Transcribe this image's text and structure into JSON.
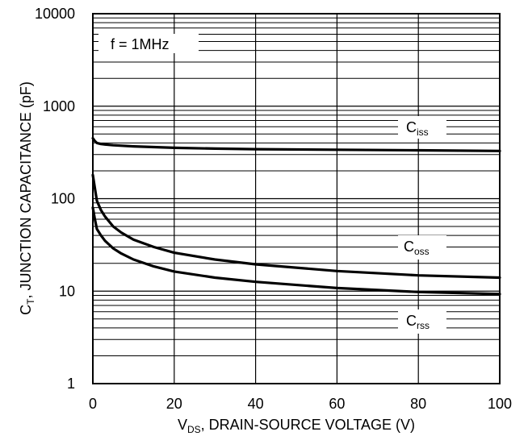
{
  "chart_data": {
    "type": "line",
    "title": "",
    "annotation": "f = 1MHz",
    "x_title": {
      "main": "V",
      "sub": "DS",
      "rest": ", DRAIN-SOURCE VOLTAGE (V)"
    },
    "y_title": {
      "main": "C",
      "sub": "T",
      "rest": ", JUNCTION CAPACITANCE (pF)"
    },
    "xlim": [
      0,
      100
    ],
    "ylim": [
      1,
      10000
    ],
    "y_scale": "log",
    "grid": true,
    "x_ticks": [
      "0",
      "20",
      "40",
      "60",
      "80",
      "100"
    ],
    "y_ticks": [
      "1",
      "10",
      "100",
      "1000",
      "10000"
    ],
    "series": [
      {
        "name": "Ciss",
        "label_main": "C",
        "label_sub": "iss",
        "x": [
          0,
          0.5,
          1,
          2,
          3,
          5,
          10,
          20,
          30,
          40,
          60,
          80,
          100
        ],
        "y": [
          450,
          420,
          400,
          390,
          385,
          378,
          368,
          355,
          348,
          343,
          338,
          333,
          328
        ]
      },
      {
        "name": "Coss",
        "label_main": "C",
        "label_sub": "oss",
        "x": [
          0,
          0.5,
          1,
          2,
          3,
          5,
          7,
          10,
          15,
          20,
          30,
          40,
          60,
          80,
          100
        ],
        "y": [
          180,
          130,
          95,
          75,
          64,
          50,
          43,
          36,
          30,
          26,
          22,
          19.5,
          16.5,
          14.8,
          14
        ]
      },
      {
        "name": "Crss",
        "label_main": "C",
        "label_sub": "rss",
        "x": [
          0,
          0.5,
          1,
          2,
          3,
          5,
          7,
          10,
          15,
          20,
          30,
          40,
          60,
          80,
          100
        ],
        "y": [
          80,
          60,
          47,
          40,
          35,
          29,
          25.5,
          22,
          18.5,
          16.3,
          14,
          12.6,
          10.8,
          9.8,
          9.3
        ]
      }
    ]
  }
}
